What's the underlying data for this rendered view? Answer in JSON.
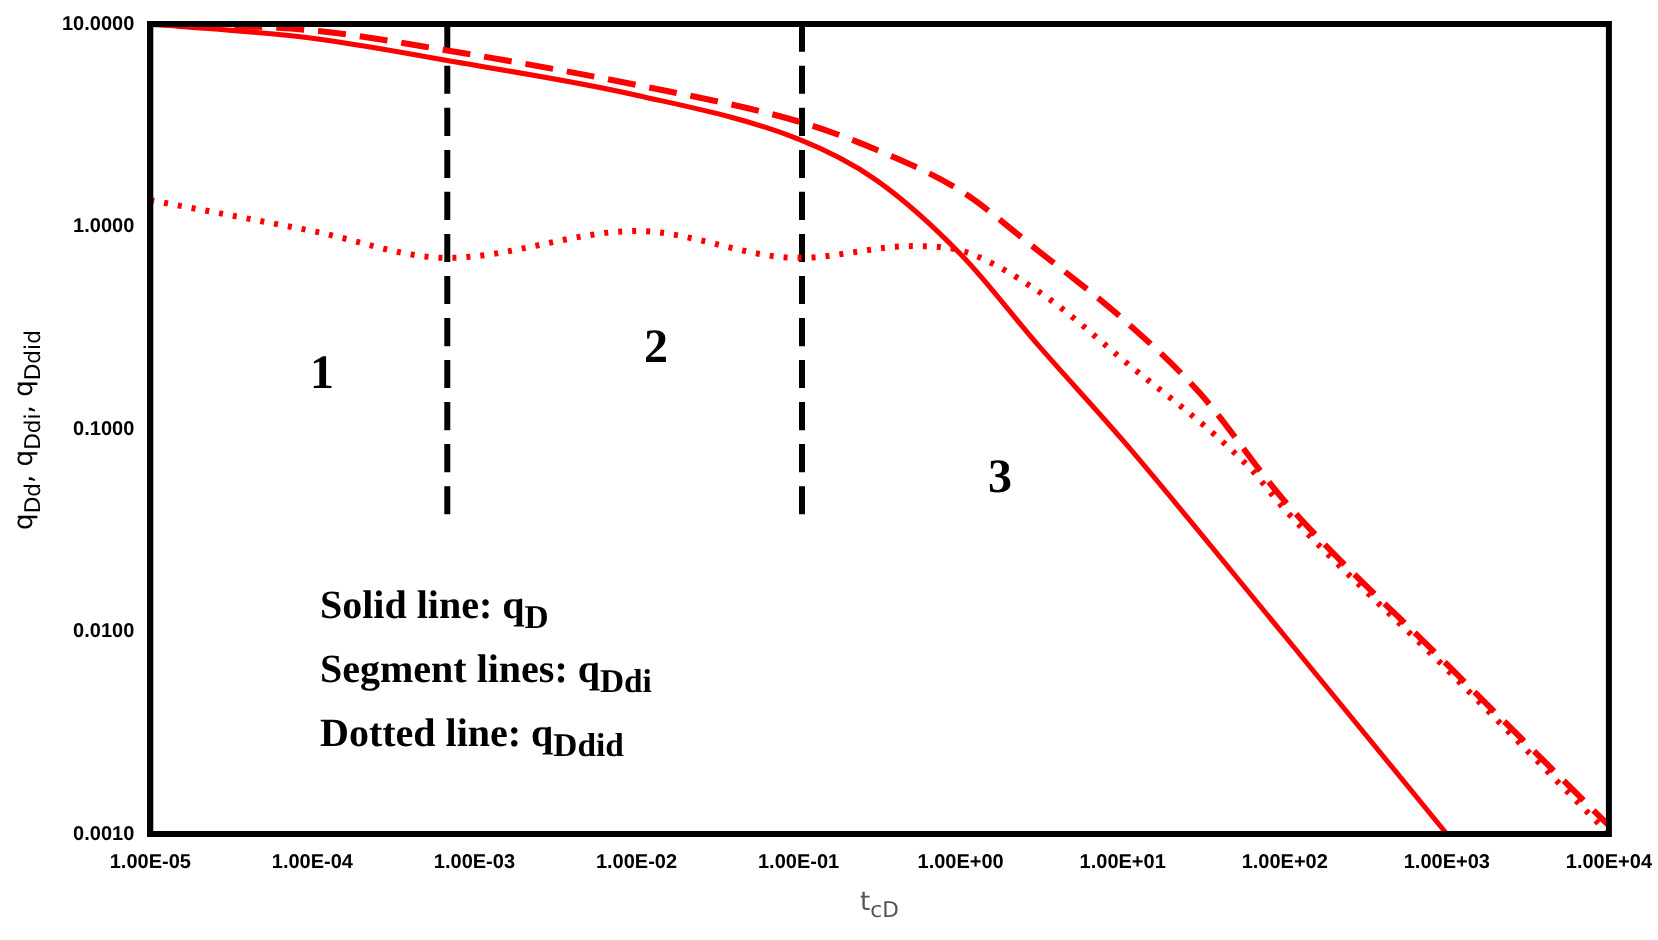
{
  "chart_data": {
    "type": "line",
    "xlabel": "t$_{cD}$",
    "ylabel": "q$_{Dd}$, q$_{Ddi}$, q$_{Ddid}$",
    "log": "xy",
    "grid": false,
    "legend": false,
    "marker": "none",
    "xlim": [
      1e-05,
      10000
    ],
    "ylim": [
      0.001,
      10
    ],
    "xticks": [
      {
        "value": 1e-05,
        "label": "1.00E-05"
      },
      {
        "value": 0.0001,
        "label": "1.00E-04"
      },
      {
        "value": 0.001,
        "label": "1.00E-03"
      },
      {
        "value": 0.01,
        "label": "1.00E-02"
      },
      {
        "value": 0.1,
        "label": "1.00E-01"
      },
      {
        "value": 1,
        "label": "1.00E+00"
      },
      {
        "value": 10,
        "label": "1.00E+01"
      },
      {
        "value": 100,
        "label": "1.00E+02"
      },
      {
        "value": 1000,
        "label": "1.00E+03"
      },
      {
        "value": 10000,
        "label": "1.00E+04"
      }
    ],
    "yticks": [
      {
        "value": 0.001,
        "label": "0.0010"
      },
      {
        "value": 0.01,
        "label": "0.0100"
      },
      {
        "value": 0.1,
        "label": "0.1000"
      },
      {
        "value": 1,
        "label": "1.0000"
      },
      {
        "value": 10,
        "label": "10.0000"
      }
    ],
    "series": [
      {
        "color": "#ff0000",
        "line_style": "solid",
        "x": [
          1e-05,
          0.0001,
          0.00068,
          0.01,
          0.1,
          0.3,
          1,
          3,
          10,
          100,
          1000
        ],
        "values": [
          10,
          8.5,
          6.6,
          4.45,
          2.7,
          1.7,
          0.73,
          0.26,
          0.088,
          0.0095,
          0.001
        ]
      },
      {
        "color": "#ff0000",
        "line_style": "dashed",
        "x": [
          1e-05,
          0.0001,
          0.00068,
          0.01,
          0.1,
          0.3,
          1,
          3,
          10,
          30,
          100,
          1000,
          10000
        ],
        "values": [
          10,
          9.3,
          7.4,
          5,
          3.3,
          2.4,
          1.5,
          0.76,
          0.35,
          0.15,
          0.044,
          0.0069,
          0.0011
        ]
      },
      {
        "color": "#ff0000",
        "line_style": "dotted",
        "x": [
          1e-05,
          0.0001,
          0.00068,
          0.01,
          0.1,
          0.5,
          1,
          3,
          10,
          60,
          100,
          1000,
          10000
        ],
        "values": [
          1.35,
          0.95,
          0.7,
          0.95,
          0.7,
          0.8,
          0.76,
          0.48,
          0.22,
          0.065,
          0.04,
          0.0065,
          0.001
        ]
      },
      {
        "color": "#000000",
        "line_style": "dashed",
        "x": [
          0.00068,
          0.00068
        ],
        "values": [
          10,
          0.035
        ]
      },
      {
        "color": "#000000",
        "line_style": "dashed",
        "x": [
          0.105,
          0.105
        ],
        "values": [
          10,
          0.035
        ]
      }
    ],
    "annotations": [
      "1",
      "2",
      "3",
      "Solid line: q$_{D}$",
      "Segment lines: q$_{Ddi}$",
      "Dotted line: q$_{Ddid}$"
    ]
  }
}
